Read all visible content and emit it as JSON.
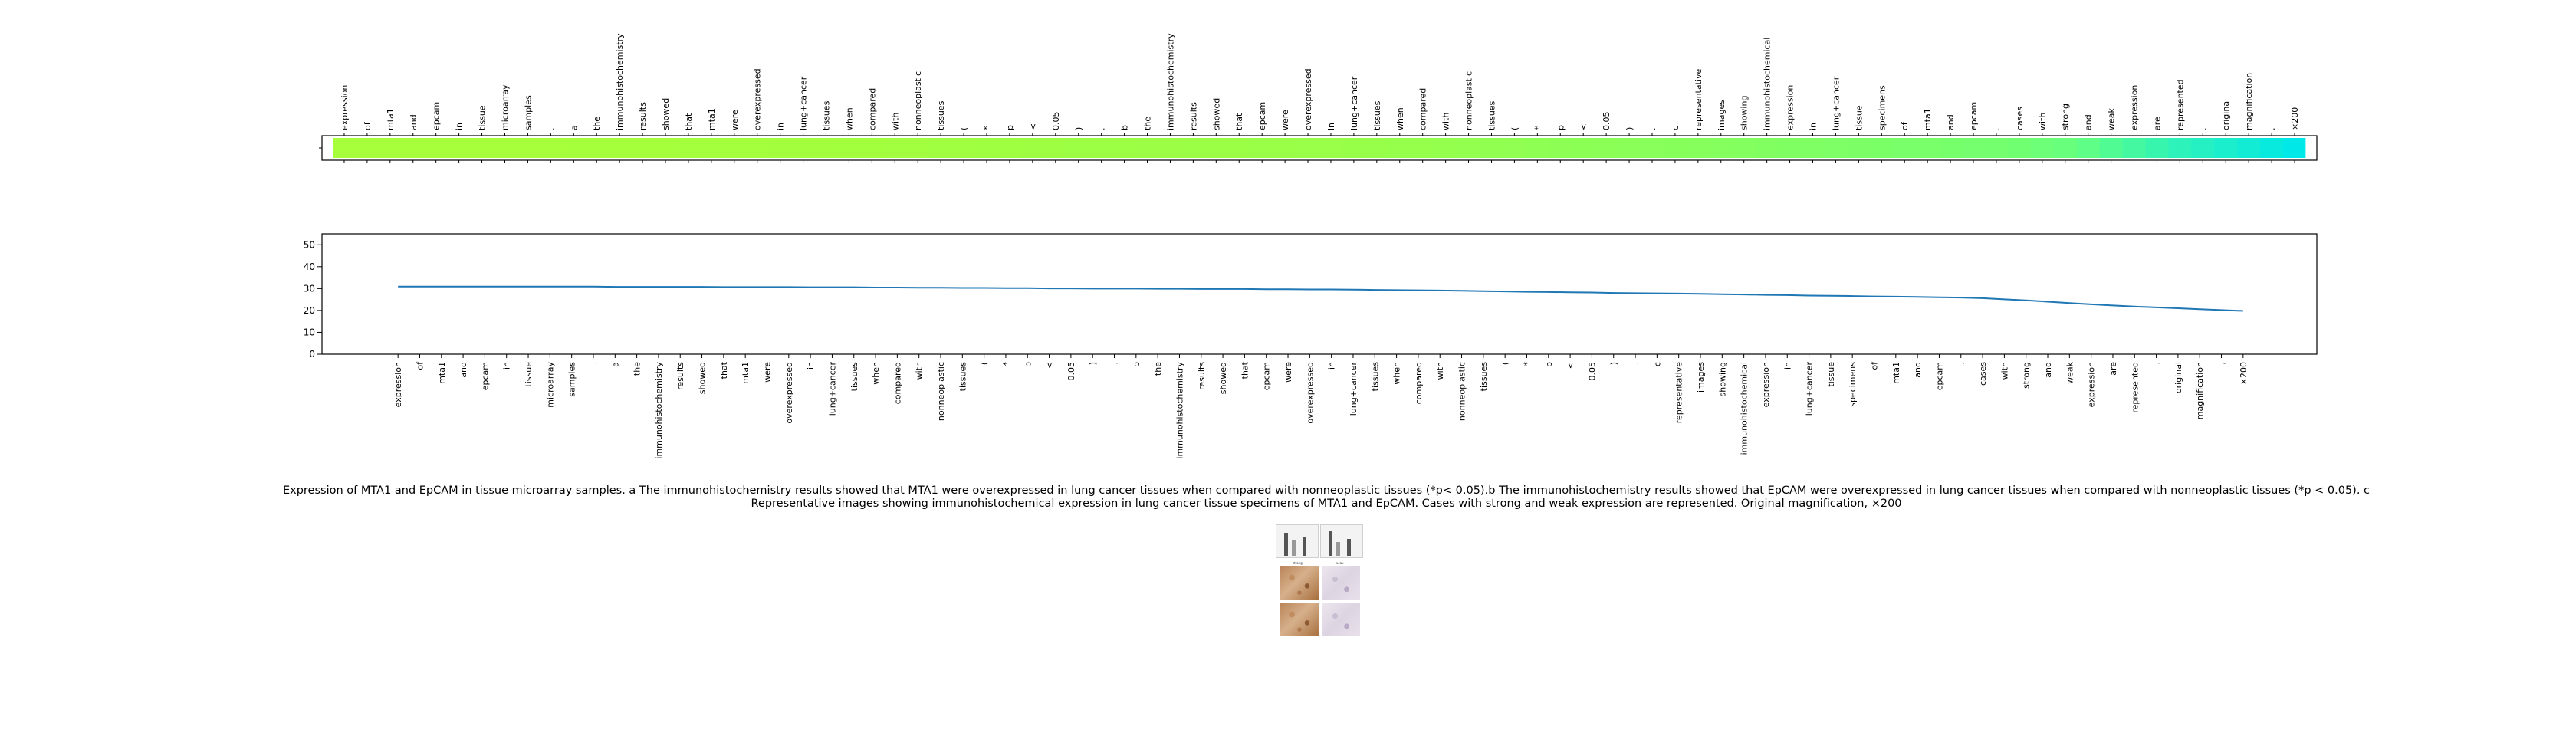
{
  "caption": "Expression of MTA1 and EpCAM in tissue microarray samples. a The immunohistochemistry results showed that MTA1 were overexpressed in lung cancer tissues when compared with nonneoplastic tissues (*p< 0.05).b The immunohistochemistry results showed that EpCAM were overexpressed in lung cancer tissues when compared with nonneoplastic tissues (*p < 0.05). c Representative images showing immunohistochemical expression in lung cancer tissue specimens of MTA1 and EpCAM. Cases with strong and weak expression are represented. Original magnification, ×200",
  "chart_data": [
    {
      "type": "heatmap",
      "colormap": "green-to-cyan",
      "tokens": [
        "expression",
        "of",
        "mta1",
        "and",
        "epcam",
        "in",
        "tissue",
        "microarray",
        "samples",
        ".",
        "a",
        "the",
        "immunohistochemistry",
        "results",
        "showed",
        "that",
        "mta1",
        "were",
        "overexpressed",
        "in",
        "lung+cancer",
        "tissues",
        "when",
        "compared",
        "with",
        "nonneoplastic",
        "tissues",
        "(",
        "*",
        "p",
        "<",
        "0.05",
        ")",
        ".",
        "b",
        "the",
        "immunohistochemistry",
        "results",
        "showed",
        "that",
        "epcam",
        "were",
        "overexpressed",
        "in",
        "lung+cancer",
        "tissues",
        "when",
        "compared",
        "with",
        "nonneoplastic",
        "tissues",
        "(",
        "*",
        "p",
        "<",
        "0.05",
        ")",
        ".",
        "c",
        "representative",
        "images",
        "showing",
        "immunohistochemical",
        "expression",
        "in",
        "lung+cancer",
        "tissue",
        "specimens",
        "of",
        "mta1",
        "and",
        "epcam",
        ".",
        "cases",
        "with",
        "strong",
        "and",
        "weak",
        "expression",
        "are",
        "represented",
        ".",
        "original",
        "magnification",
        ",",
        "×200"
      ],
      "values": [
        30.9,
        30.9,
        30.9,
        30.9,
        30.9,
        30.9,
        30.9,
        30.9,
        30.9,
        30.9,
        30.8,
        30.8,
        30.8,
        30.8,
        30.8,
        30.7,
        30.7,
        30.7,
        30.7,
        30.6,
        30.6,
        30.6,
        30.5,
        30.5,
        30.4,
        30.4,
        30.3,
        30.3,
        30.2,
        30.2,
        30.1,
        30.1,
        30.0,
        30.0,
        30.0,
        29.9,
        29.9,
        29.8,
        29.8,
        29.8,
        29.7,
        29.7,
        29.6,
        29.6,
        29.5,
        29.4,
        29.3,
        29.2,
        29.1,
        29.0,
        28.8,
        28.7,
        28.5,
        28.4,
        28.3,
        28.2,
        28.0,
        27.9,
        27.8,
        27.7,
        27.6,
        27.4,
        27.3,
        27.1,
        27.0,
        26.8,
        26.7,
        26.6,
        26.4,
        26.3,
        26.2,
        26.0,
        25.9,
        25.6,
        25.1,
        24.6,
        24.0,
        23.4,
        22.8,
        22.3,
        21.8,
        21.4,
        21.0,
        20.6,
        20.2,
        19.8
      ]
    },
    {
      "type": "line",
      "x": [
        "expression",
        "of",
        "mta1",
        "and",
        "epcam",
        "in",
        "tissue",
        "microarray",
        "samples",
        ".",
        "a",
        "the",
        "immunohistochemistry",
        "results",
        "showed",
        "that",
        "mta1",
        "were",
        "overexpressed",
        "in",
        "lung+cancer",
        "tissues",
        "when",
        "compared",
        "with",
        "nonneoplastic",
        "tissues",
        "(",
        "*",
        "p",
        "<",
        "0.05",
        ")",
        ".",
        "b",
        "the",
        "immunohistochemistry",
        "results",
        "showed",
        "that",
        "epcam",
        "were",
        "overexpressed",
        "in",
        "lung+cancer",
        "tissues",
        "when",
        "compared",
        "with",
        "nonneoplastic",
        "tissues",
        "(",
        "*",
        "p",
        "<",
        "0.05",
        ")",
        ".",
        "c",
        "representative",
        "images",
        "showing",
        "immunohistochemical",
        "expression",
        "in",
        "lung+cancer",
        "tissue",
        "specimens",
        "of",
        "mta1",
        "and",
        "epcam",
        ".",
        "cases",
        "with",
        "strong",
        "and",
        "weak",
        "expression",
        "are",
        "represented",
        ".",
        "original",
        "magnification",
        ",",
        "×200"
      ],
      "series": [
        {
          "values": [
            30.9,
            30.9,
            30.9,
            30.9,
            30.9,
            30.9,
            30.9,
            30.9,
            30.9,
            30.9,
            30.8,
            30.8,
            30.8,
            30.8,
            30.8,
            30.7,
            30.7,
            30.7,
            30.7,
            30.6,
            30.6,
            30.6,
            30.5,
            30.5,
            30.4,
            30.4,
            30.3,
            30.3,
            30.2,
            30.2,
            30.1,
            30.1,
            30.0,
            30.0,
            30.0,
            29.9,
            29.9,
            29.8,
            29.8,
            29.8,
            29.7,
            29.7,
            29.6,
            29.6,
            29.5,
            29.4,
            29.3,
            29.2,
            29.1,
            29.0,
            28.8,
            28.7,
            28.5,
            28.4,
            28.3,
            28.2,
            28.0,
            27.9,
            27.8,
            27.7,
            27.6,
            27.4,
            27.3,
            27.1,
            27.0,
            26.8,
            26.7,
            26.6,
            26.4,
            26.3,
            26.2,
            26.0,
            25.9,
            25.6,
            25.1,
            24.6,
            24.0,
            23.4,
            22.8,
            22.3,
            21.8,
            21.4,
            21.0,
            20.6,
            20.2,
            19.8
          ],
          "color": "#1f77b4"
        }
      ],
      "ylim": [
        0,
        55
      ],
      "yticks": [
        0,
        10,
        20,
        30,
        40,
        50
      ],
      "grid": false
    }
  ],
  "thumbnail": {
    "label_strong": "strong",
    "label_weak": "weak"
  }
}
